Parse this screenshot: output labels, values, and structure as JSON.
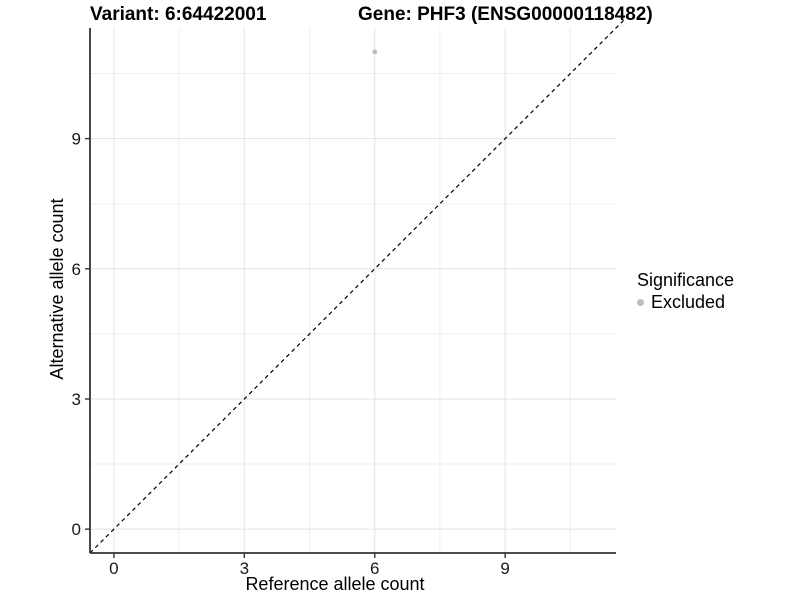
{
  "header": {
    "variant_title": "Variant: 6:64422001",
    "gene_title": "Gene: PHF3 (ENSG00000118482)"
  },
  "axes": {
    "x_title": "Reference allele count",
    "y_title": "Alternative allele count"
  },
  "legend": {
    "title": "Significance",
    "items": [
      {
        "label": "Excluded",
        "color": "#bdbdbd"
      }
    ]
  },
  "chart_data": {
    "type": "scatter",
    "title": "Variant: 6:64422001 | Gene: PHF3 (ENSG00000118482)",
    "xlabel": "Reference allele count",
    "ylabel": "Alternative allele count",
    "xlim": [
      -0.55,
      11.55
    ],
    "ylim": [
      -0.55,
      11.55
    ],
    "x_ticks": [
      0,
      3,
      6,
      9
    ],
    "y_ticks": [
      0,
      3,
      6,
      9
    ],
    "x_minor_ticks": [
      1.5,
      4.5,
      7.5,
      10.5
    ],
    "y_minor_ticks": [
      1.5,
      4.5,
      7.5,
      10.5
    ],
    "grid": true,
    "legend_position": "right",
    "series": [
      {
        "name": "Excluded",
        "color": "#bdbdbd",
        "points": [
          {
            "x": 6,
            "y": 11
          }
        ]
      }
    ],
    "reference_line": {
      "slope": 1,
      "intercept": 0,
      "style": "dashed",
      "color": "#000000"
    }
  },
  "colors": {
    "background": "#ffffff",
    "grid_major": "#e3e3e3",
    "grid_minor": "#efefef",
    "axis_line": "#333333",
    "tick_label": "#1a1a1a",
    "point": "#bdbdbd"
  }
}
